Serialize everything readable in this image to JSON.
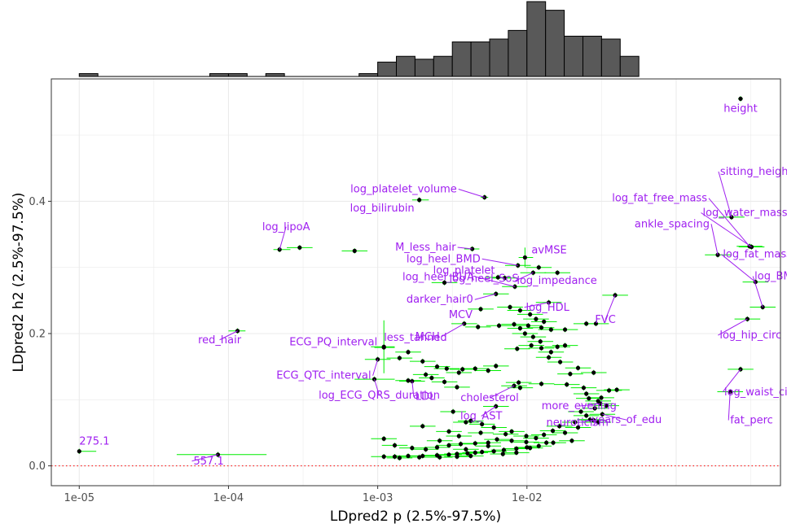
{
  "chart_data": {
    "type": "scatter",
    "xlabel": "LDpred2 p (2.5%-97.5%)",
    "ylabel": "LDpred2 h2 (2.5%-97.5%)",
    "x_scale": "log10",
    "xlim": [
      6.5e-06,
      0.5
    ],
    "ylim": [
      -0.03,
      0.585
    ],
    "x_ticks": [
      1e-05,
      0.0001,
      0.001,
      0.01
    ],
    "x_tick_labels": [
      "1e-05",
      "1e-04",
      "1e-03",
      "1e-02"
    ],
    "y_ticks": [
      0.0,
      0.2,
      0.4
    ],
    "y_tick_labels": [
      "0.0",
      "0.2",
      "0.4"
    ],
    "reference_line": {
      "y": 0,
      "style": "dotted",
      "color": "#ff0000"
    },
    "grid": true,
    "colors": {
      "point": "#000000",
      "errorbar": "#00ee00",
      "label": "#a020f0",
      "hist_fill": "#595959",
      "hist_edge": "#000000"
    },
    "labeled_points": [
      {
        "name": "height",
        "x": 0.27,
        "h2": 0.555,
        "ci_x": [
          0.26,
          0.28
        ]
      },
      {
        "name": "sitting_height",
        "x": 0.235,
        "h2": 0.376
      },
      {
        "name": "log_platelet_volume",
        "x": 0.0052,
        "h2": 0.406,
        "ci_x": [
          0.0049,
          0.0055
        ]
      },
      {
        "name": "log_bilirubin",
        "x": 0.0019,
        "h2": 0.402,
        "ci_x": [
          0.0017,
          0.0022
        ]
      },
      {
        "name": "log_fat_free_mass",
        "x": 0.31,
        "h2": 0.332
      },
      {
        "name": "log_water_mass",
        "x": 0.32,
        "h2": 0.331
      },
      {
        "name": "ankle_spacing",
        "x": 0.19,
        "h2": 0.319
      },
      {
        "name": "log_fat_mass",
        "x": 0.34,
        "h2": 0.278
      },
      {
        "name": "log_lipoA",
        "x": 0.00022,
        "h2": 0.327,
        "ci_x": [
          0.0002,
          0.00026
        ]
      },
      {
        "name": "log_heel_BMD",
        "x": 0.0087,
        "h2": 0.303
      },
      {
        "name": "avMSE",
        "x": 0.0097,
        "h2": 0.315,
        "ci_x": [
          0.0088,
          0.011
        ],
        "ci_y": [
          0.3,
          0.33
        ]
      },
      {
        "name": "M_less_hair",
        "x": 0.0043,
        "h2": 0.328,
        "ci_x": [
          0.0038,
          0.0048
        ]
      },
      {
        "name": "log_BMI",
        "x": 0.38,
        "h2": 0.24
      },
      {
        "name": "log_platelet",
        "x": 0.0071,
        "h2": 0.284
      },
      {
        "name": "log_impedance",
        "x": 0.011,
        "h2": 0.292
      },
      {
        "name": "log_heel_BUA",
        "x": 0.0083,
        "h2": 0.271
      },
      {
        "name": "log_heel_SoS",
        "x": 0.0028,
        "h2": 0.277
      },
      {
        "name": "darker_hair0",
        "x": 0.0062,
        "h2": 0.26
      },
      {
        "name": "log_HDL",
        "x": 0.014,
        "h2": 0.247
      },
      {
        "name": "MCV",
        "x": 0.0049,
        "h2": 0.237
      },
      {
        "name": "FVC",
        "x": 0.039,
        "h2": 0.258
      },
      {
        "name": "MCH",
        "x": 0.0038,
        "h2": 0.215
      },
      {
        "name": "red_hair",
        "x": 0.000115,
        "h2": 0.204,
        "ci_x": [
          0.0001,
          0.00013
        ]
      },
      {
        "name": "log_hip_circ",
        "x": 0.3,
        "h2": 0.222
      },
      {
        "name": "less_tanned",
        "x": 0.0011,
        "h2": 0.179,
        "ci_x": [
          0.00095,
          0.0013
        ],
        "ci_y": [
          0.14,
          0.22
        ]
      },
      {
        "name": "ECG_PQ_interval",
        "x": 0.0011,
        "h2": 0.18,
        "ci_x": [
          0.0009,
          0.0013
        ]
      },
      {
        "name": "ECG_QTC_interval",
        "x": 0.001,
        "h2": 0.161
      },
      {
        "name": "log_ECG_QRS_duration",
        "x": 0.00095,
        "h2": 0.131,
        "ci_x": [
          0.0007,
          0.0013
        ]
      },
      {
        "name": "LDL",
        "x": 0.0017,
        "h2": 0.128
      },
      {
        "name": "cholesterol",
        "x": 0.0082,
        "h2": 0.121
      },
      {
        "name": "log_waist_circ",
        "x": 0.27,
        "h2": 0.146
      },
      {
        "name": "log_AST",
        "x": 0.0062,
        "h2": 0.09
      },
      {
        "name": "more_evening",
        "x": 0.031,
        "h2": 0.094
      },
      {
        "name": "fat_perc",
        "x": 0.23,
        "h2": 0.112
      },
      {
        "name": "neuroticism",
        "x": 0.028,
        "h2": 0.069
      },
      {
        "name": "years_of_edu",
        "x": 0.032,
        "h2": 0.078
      },
      {
        "name": "275.1",
        "x": 1e-05,
        "h2": 0.022,
        "ci_x": [
          1e-05,
          1.3e-05
        ]
      },
      {
        "name": "557.1",
        "x": 8.5e-05,
        "h2": 0.017,
        "ci_x": [
          4.5e-05,
          0.00018
        ]
      }
    ],
    "other_points": [
      [
        0.0003,
        0.33
      ],
      [
        0.0007,
        0.325
      ],
      [
        0.012,
        0.3
      ],
      [
        0.016,
        0.292
      ],
      [
        0.0064,
        0.285
      ],
      [
        0.0077,
        0.24
      ],
      [
        0.009,
        0.235
      ],
      [
        0.0105,
        0.229
      ],
      [
        0.0115,
        0.222
      ],
      [
        0.013,
        0.218
      ],
      [
        0.0082,
        0.214
      ],
      [
        0.0065,
        0.212
      ],
      [
        0.0047,
        0.21
      ],
      [
        0.0102,
        0.212
      ],
      [
        0.0125,
        0.209
      ],
      [
        0.0145,
        0.206
      ],
      [
        0.018,
        0.206
      ],
      [
        0.029,
        0.215
      ],
      [
        0.0097,
        0.2
      ],
      [
        0.011,
        0.195
      ],
      [
        0.0123,
        0.188
      ],
      [
        0.0107,
        0.182
      ],
      [
        0.0086,
        0.177
      ],
      [
        0.0125,
        0.178
      ],
      [
        0.0145,
        0.172
      ],
      [
        0.016,
        0.18
      ],
      [
        0.018,
        0.182
      ],
      [
        0.014,
        0.164
      ],
      [
        0.0167,
        0.157
      ],
      [
        0.022,
        0.148
      ],
      [
        0.025,
        0.215
      ],
      [
        0.009,
        0.208
      ],
      [
        0.0062,
        0.151
      ],
      [
        0.0045,
        0.147
      ],
      [
        0.0037,
        0.146
      ],
      [
        0.0055,
        0.144
      ],
      [
        0.0029,
        0.147
      ],
      [
        0.0035,
        0.141
      ],
      [
        0.0021,
        0.138
      ],
      [
        0.0016,
        0.129
      ],
      [
        0.002,
        0.158
      ],
      [
        0.0025,
        0.15
      ],
      [
        0.0014,
        0.163
      ],
      [
        0.0016,
        0.172
      ],
      [
        0.0023,
        0.133
      ],
      [
        0.0028,
        0.127
      ],
      [
        0.0034,
        0.119
      ],
      [
        0.0088,
        0.126
      ],
      [
        0.009,
        0.118
      ],
      [
        0.0125,
        0.124
      ],
      [
        0.0185,
        0.123
      ],
      [
        0.0195,
        0.139
      ],
      [
        0.028,
        0.141
      ],
      [
        0.024,
        0.118
      ],
      [
        0.025,
        0.109
      ],
      [
        0.026,
        0.102
      ],
      [
        0.03,
        0.098
      ],
      [
        0.034,
        0.091
      ],
      [
        0.023,
        0.082
      ],
      [
        0.025,
        0.076
      ],
      [
        0.021,
        0.066
      ],
      [
        0.03,
        0.066
      ],
      [
        0.022,
        0.058
      ],
      [
        0.018,
        0.05
      ],
      [
        0.02,
        0.038
      ],
      [
        0.015,
        0.035
      ],
      [
        0.012,
        0.03
      ],
      [
        0.01,
        0.028
      ],
      [
        0.0085,
        0.026
      ],
      [
        0.007,
        0.024
      ],
      [
        0.006,
        0.022
      ],
      [
        0.005,
        0.021
      ],
      [
        0.0045,
        0.02
      ],
      [
        0.004,
        0.019
      ],
      [
        0.0034,
        0.018
      ],
      [
        0.003,
        0.017
      ],
      [
        0.0025,
        0.016
      ],
      [
        0.002,
        0.015
      ],
      [
        0.0016,
        0.015
      ],
      [
        0.0013,
        0.014
      ],
      [
        0.0011,
        0.014
      ],
      [
        0.0021,
        0.025
      ],
      [
        0.0025,
        0.028
      ],
      [
        0.003,
        0.031
      ],
      [
        0.0036,
        0.033
      ],
      [
        0.0045,
        0.034
      ],
      [
        0.0055,
        0.035
      ],
      [
        0.0063,
        0.04
      ],
      [
        0.0079,
        0.038
      ],
      [
        0.0099,
        0.036
      ],
      [
        0.0013,
        0.031
      ],
      [
        0.0017,
        0.027
      ],
      [
        0.0011,
        0.041
      ],
      [
        0.002,
        0.06
      ],
      [
        0.0032,
        0.082
      ],
      [
        0.0039,
        0.066
      ],
      [
        0.005,
        0.063
      ],
      [
        0.006,
        0.058
      ],
      [
        0.0079,
        0.052
      ],
      [
        0.0099,
        0.045
      ],
      [
        0.0115,
        0.042
      ],
      [
        0.013,
        0.047
      ],
      [
        0.0149,
        0.053
      ],
      [
        0.0165,
        0.06
      ],
      [
        0.0265,
        0.07
      ],
      [
        0.0285,
        0.087
      ],
      [
        0.0315,
        0.103
      ],
      [
        0.0355,
        0.114
      ],
      [
        0.04,
        0.115
      ],
      [
        0.0042,
        0.068
      ],
      [
        0.003,
        0.052
      ],
      [
        0.0026,
        0.038
      ],
      [
        0.0035,
        0.045
      ],
      [
        0.0049,
        0.05
      ],
      [
        0.0072,
        0.048
      ],
      [
        0.0055,
        0.03
      ],
      [
        0.0039,
        0.025
      ],
      [
        0.0014,
        0.012
      ],
      [
        0.0019,
        0.013
      ],
      [
        0.0026,
        0.013
      ],
      [
        0.0034,
        0.014
      ],
      [
        0.0042,
        0.015
      ],
      [
        0.0069,
        0.018
      ],
      [
        0.0085,
        0.02
      ],
      [
        0.0105,
        0.027
      ],
      [
        0.0135,
        0.035
      ]
    ],
    "label_positions_note": "labels connected to points by purple leader lines",
    "marginal_histogram": {
      "variable": "LDpred2 p",
      "bin_edges_log10": [
        -5.0,
        -4.875,
        -4.75,
        -4.625,
        -4.5,
        -4.375,
        -4.25,
        -4.125,
        -4.0,
        -3.875,
        -3.75,
        -3.625,
        -3.5,
        -3.375,
        -3.25,
        -3.125,
        -3.0,
        -2.875,
        -2.75,
        -2.625,
        -2.5,
        -2.375,
        -2.25,
        -2.125,
        -2.0,
        -1.875,
        -1.75,
        -1.625,
        -1.5,
        -1.375
      ],
      "counts": [
        1,
        0,
        0,
        0,
        0,
        0,
        0,
        1,
        1,
        0,
        1,
        0,
        0,
        0,
        0,
        1,
        5,
        7,
        6,
        7,
        12,
        12,
        13,
        16,
        26,
        23,
        14,
        14,
        13,
        7
      ]
    }
  }
}
